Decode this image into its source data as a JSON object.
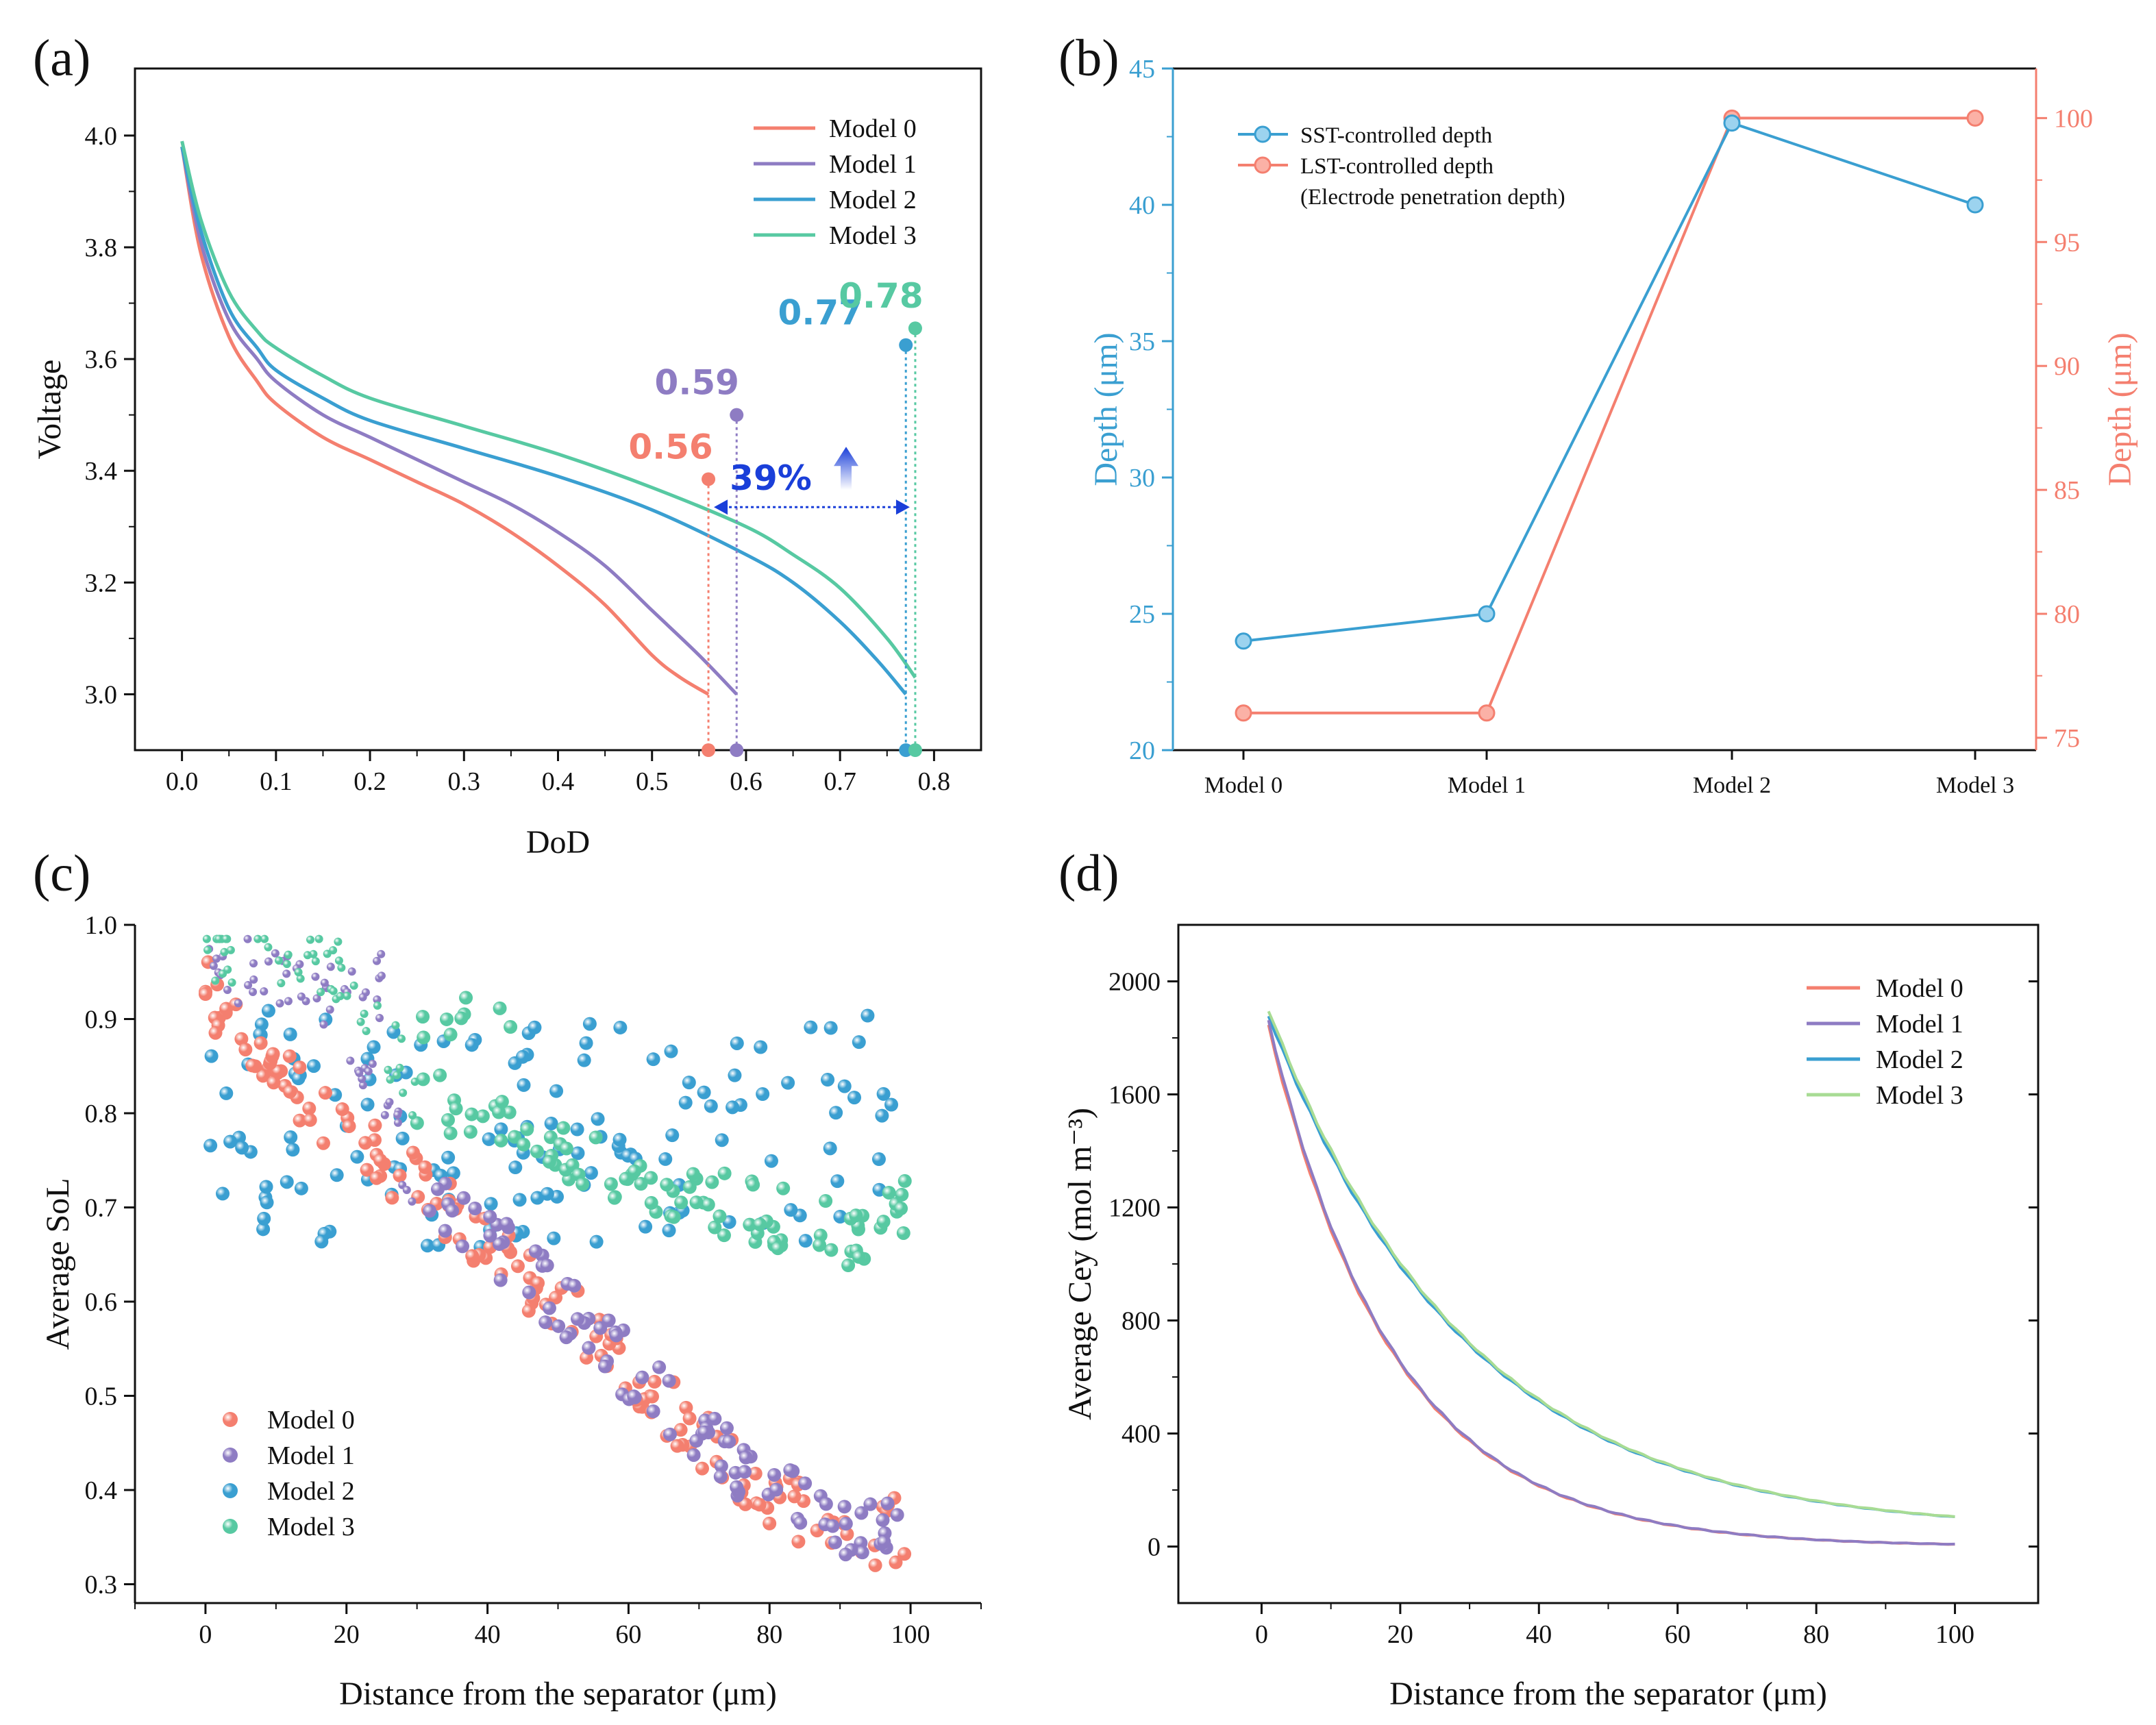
{
  "colors": {
    "model0": "#f47f6f",
    "model1": "#8e7cc3",
    "model2": "#3a9fd1",
    "model3": "#57c9a2",
    "model3_light": "#a8dc94",
    "arrow": "#1a3fd9"
  },
  "chart_data": [
    {
      "id": "a",
      "panel_label": "(a)",
      "type": "line",
      "xlabel": "DoD",
      "ylabel": "Voltage",
      "xlim": [
        -0.05,
        0.85
      ],
      "ylim": [
        2.9,
        4.12
      ],
      "xticks": [
        "0.0",
        "0.1",
        "0.2",
        "0.3",
        "0.4",
        "0.5",
        "0.6",
        "0.7",
        "0.8"
      ],
      "yticks": [
        "3.0",
        "3.2",
        "3.4",
        "3.6",
        "3.8",
        "4.0"
      ],
      "legend": [
        "Model 0",
        "Model 1",
        "Model 2",
        "Model 3"
      ],
      "legend_position": "top-right",
      "series": [
        {
          "name": "Model 0",
          "x": [
            0,
            0.02,
            0.05,
            0.08,
            0.1,
            0.15,
            0.2,
            0.25,
            0.3,
            0.35,
            0.4,
            0.45,
            0.5,
            0.53,
            0.56
          ],
          "y": [
            3.98,
            3.79,
            3.64,
            3.56,
            3.52,
            3.46,
            3.42,
            3.38,
            3.34,
            3.29,
            3.23,
            3.16,
            3.07,
            3.03,
            3.0
          ]
        },
        {
          "name": "Model 1",
          "x": [
            0,
            0.02,
            0.05,
            0.08,
            0.1,
            0.15,
            0.2,
            0.25,
            0.3,
            0.35,
            0.4,
            0.45,
            0.5,
            0.55,
            0.59
          ],
          "y": [
            3.98,
            3.81,
            3.67,
            3.6,
            3.56,
            3.5,
            3.46,
            3.42,
            3.38,
            3.34,
            3.29,
            3.23,
            3.15,
            3.07,
            3.0
          ]
        },
        {
          "name": "Model 2",
          "x": [
            0,
            0.02,
            0.05,
            0.08,
            0.1,
            0.15,
            0.2,
            0.3,
            0.4,
            0.5,
            0.6,
            0.65,
            0.7,
            0.74,
            0.77
          ],
          "y": [
            3.98,
            3.83,
            3.69,
            3.62,
            3.58,
            3.53,
            3.49,
            3.44,
            3.39,
            3.33,
            3.25,
            3.2,
            3.13,
            3.06,
            3.0
          ]
        },
        {
          "name": "Model 3",
          "x": [
            0,
            0.02,
            0.05,
            0.08,
            0.1,
            0.15,
            0.2,
            0.3,
            0.4,
            0.5,
            0.6,
            0.65,
            0.7,
            0.75,
            0.78
          ],
          "y": [
            3.99,
            3.85,
            3.72,
            3.65,
            3.62,
            3.57,
            3.53,
            3.48,
            3.43,
            3.37,
            3.3,
            3.25,
            3.19,
            3.1,
            3.03
          ]
        }
      ],
      "endpoints": [
        {
          "name": "Model 0",
          "value": 0.56,
          "label": "0.56",
          "top_y": 3.385
        },
        {
          "name": "Model 1",
          "value": 0.59,
          "label": "0.59",
          "top_y": 3.5
        },
        {
          "name": "Model 2",
          "value": 0.77,
          "label": "0.77",
          "top_y": 3.625
        },
        {
          "name": "Model 3",
          "value": 0.78,
          "label": "0.78",
          "top_y": 3.655
        }
      ],
      "improvement": {
        "label": "39%",
        "from": 0.56,
        "to": 0.78,
        "y": 3.335
      }
    },
    {
      "id": "b",
      "panel_label": "(b)",
      "type": "line",
      "categories": [
        "Model 0",
        "Model 1",
        "Model 2",
        "Model 3"
      ],
      "ylabel": "Depth (μm)",
      "ylabel_right": "Depth (μm)",
      "ylim": [
        20,
        45
      ],
      "ylim_right": [
        74.5,
        102
      ],
      "yticks": [
        "20",
        "25",
        "30",
        "35",
        "40",
        "45"
      ],
      "yticks_right": [
        "75",
        "80",
        "85",
        "90",
        "95",
        "100"
      ],
      "legend_position": "top-left",
      "series": [
        {
          "name": "SST-controlled depth",
          "axis": "left",
          "values": [
            24,
            25,
            43,
            40
          ]
        },
        {
          "name": "LST-controlled depth",
          "sublabel": "(Electrode penetration depth)",
          "axis": "right",
          "values": [
            76,
            76,
            100,
            100
          ]
        }
      ]
    },
    {
      "id": "c",
      "panel_label": "(c)",
      "type": "scatter",
      "xlabel": "Distance from the separator (μm)",
      "ylabel": "Average SoL",
      "xlim": [
        -10,
        110
      ],
      "ylim": [
        0.28,
        1.0
      ],
      "xticks": [
        "0",
        "20",
        "40",
        "60",
        "80",
        "100"
      ],
      "yticks": [
        "0.3",
        "0.4",
        "0.5",
        "0.6",
        "0.7",
        "0.8",
        "0.9",
        "1.0"
      ],
      "legend": [
        "Model 0",
        "Model 1",
        "Model 2",
        "Model 3"
      ],
      "legend_position": "bottom-left",
      "series": [
        {
          "name": "Model 0",
          "trend": {
            "x": [
              0,
              10,
              20,
              30,
              40,
              50,
              60,
              70,
              80,
              90,
              100
            ],
            "y": [
              0.93,
              0.85,
              0.78,
              0.72,
              0.66,
              0.6,
              0.53,
              0.46,
              0.39,
              0.35,
              0.36
            ]
          },
          "spread": 0.035
        },
        {
          "name": "Model 1",
          "trend": {
            "x": [
              0,
              10,
              20,
              30,
              40,
              50,
              60,
              70,
              80,
              90,
              100
            ],
            "y": [
              0.97,
              0.95,
              0.9,
              0.72,
              0.67,
              0.6,
              0.53,
              0.46,
              0.4,
              0.36,
              0.38
            ]
          },
          "spread": 0.035
        },
        {
          "name": "Model 2",
          "trend": {
            "x": [
              0,
              20,
              40,
              60,
              80,
              100
            ],
            "y": [
              0.8,
              0.78,
              0.77,
              0.78,
              0.77,
              0.8
            ]
          },
          "spread": 0.12
        },
        {
          "name": "Model 3",
          "trend": {
            "x": [
              0,
              10,
              20,
              30,
              40,
              50,
              60,
              70,
              80,
              90,
              100
            ],
            "y": [
              0.975,
              0.965,
              0.95,
              0.82,
              0.79,
              0.76,
              0.73,
              0.71,
              0.69,
              0.67,
              0.7
            ]
          },
          "spread": 0.035
        }
      ]
    },
    {
      "id": "d",
      "panel_label": "(d)",
      "type": "line",
      "xlabel": "Distance from the separator (μm)",
      "ylabel": "Average Cey (mol m⁻³)",
      "xlim": [
        -12,
        112
      ],
      "ylim": [
        -200,
        2200
      ],
      "xticks": [
        "0",
        "20",
        "40",
        "60",
        "80",
        "100"
      ],
      "yticks": [
        "0",
        "400",
        "800",
        "1200",
        "1600",
        "2000"
      ],
      "legend": [
        "Model 0",
        "Model 1",
        "Model 2",
        "Model 3"
      ],
      "legend_position": "top-right",
      "series": [
        {
          "name": "Model 0",
          "start": 1840,
          "decay": 0.055
        },
        {
          "name": "Model 1",
          "start": 1860,
          "decay": 0.055
        },
        {
          "name": "Model 2",
          "start": 1880,
          "decay": 0.034,
          "floor": 40
        },
        {
          "name": "Model 3",
          "start": 1900,
          "decay": 0.034,
          "floor": 40
        }
      ]
    }
  ]
}
